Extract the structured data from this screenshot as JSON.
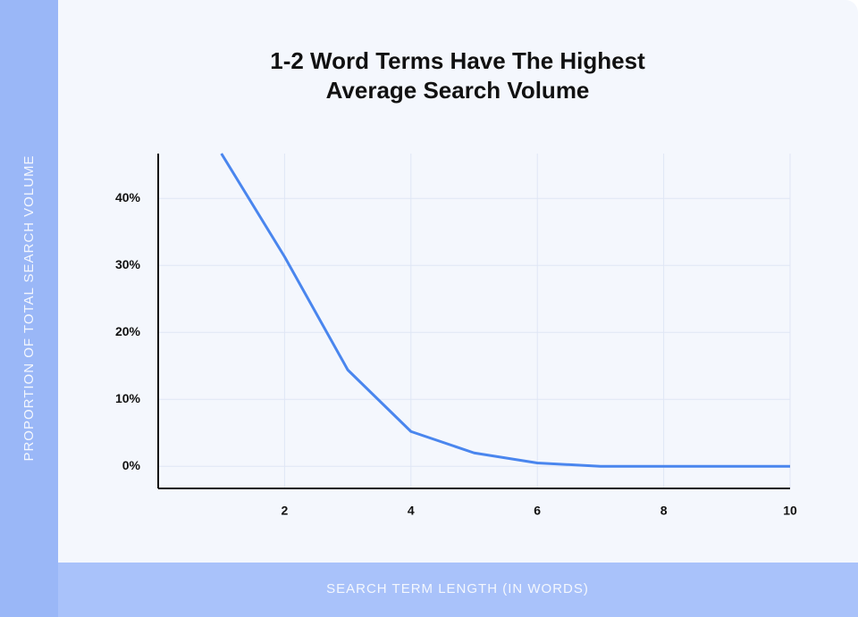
{
  "chart_data": {
    "type": "line",
    "title": [
      "1-2 Word Terms Have The Highest",
      "Average Search Volume"
    ],
    "x_label": "SEARCH TERM LENGTH (IN WORDS)",
    "y_label": "PROPORTION OF TOTAL SEARCH VOLUME",
    "x": [
      1,
      2,
      3,
      4,
      5,
      6,
      7,
      8,
      9,
      10
    ],
    "series": [
      {
        "color": "#4a86ee",
        "values": [
          46.7,
          31.3,
          14.4,
          5.2,
          2.0,
          0.5,
          0,
          0,
          0,
          0
        ]
      }
    ],
    "xlim": [
      0,
      10
    ],
    "xticks": [
      2,
      4,
      6,
      8,
      10
    ],
    "ylim": [
      -3.3,
      46.7
    ],
    "yticks": [
      {
        "value": 0,
        "label": "0%"
      },
      {
        "value": 10,
        "label": "10%"
      },
      {
        "value": 20,
        "label": "20%"
      },
      {
        "value": 30,
        "label": "30%"
      },
      {
        "value": 40,
        "label": "40%"
      }
    ],
    "grid": true
  }
}
